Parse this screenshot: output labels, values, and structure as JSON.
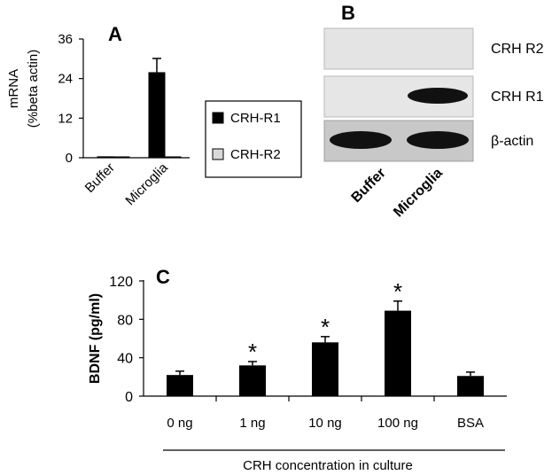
{
  "panels": {
    "a": "A",
    "b": "B",
    "c": "C"
  },
  "chart_data": [
    {
      "panel": "A",
      "type": "bar",
      "ylabel_line1": "mRNA",
      "ylabel_line2": "(%beta actin)",
      "yticks": [
        "0",
        "12",
        "24",
        "36"
      ],
      "ylim": [
        0,
        36
      ],
      "categories": [
        "Buffer",
        "Microglia"
      ],
      "series": [
        {
          "name": "CRH-R1",
          "values": [
            0.3,
            25.8
          ],
          "errors": [
            0,
            4.3
          ],
          "color": "#000000"
        },
        {
          "name": "CRH-R2",
          "values": [
            0.2,
            0.2
          ],
          "errors": [
            0,
            0
          ],
          "color": "#d9d9d9"
        }
      ],
      "legend_position": "right"
    },
    {
      "panel": "B",
      "type": "gel",
      "rows": [
        "CRH R2",
        "CRH R1",
        "β-actin"
      ],
      "lanes": [
        "Buffer",
        "Microglia"
      ],
      "band_intensity": [
        [
          0,
          0
        ],
        [
          0,
          1
        ],
        [
          1,
          1
        ]
      ]
    },
    {
      "panel": "C",
      "type": "bar",
      "ylabel": "BDNF (pg/ml)",
      "yticks": [
        "0",
        "40",
        "80",
        "120"
      ],
      "ylim": [
        0,
        120
      ],
      "categories": [
        "0 ng",
        "1 ng",
        "10 ng",
        "100 ng",
        "BSA"
      ],
      "values": [
        22,
        32,
        56,
        89,
        21
      ],
      "errors": [
        4,
        4,
        6,
        10,
        4
      ],
      "significant": [
        "",
        "*",
        "*",
        "*",
        ""
      ],
      "xlabel": "CRH concentration in culture",
      "color": "#000000"
    }
  ]
}
